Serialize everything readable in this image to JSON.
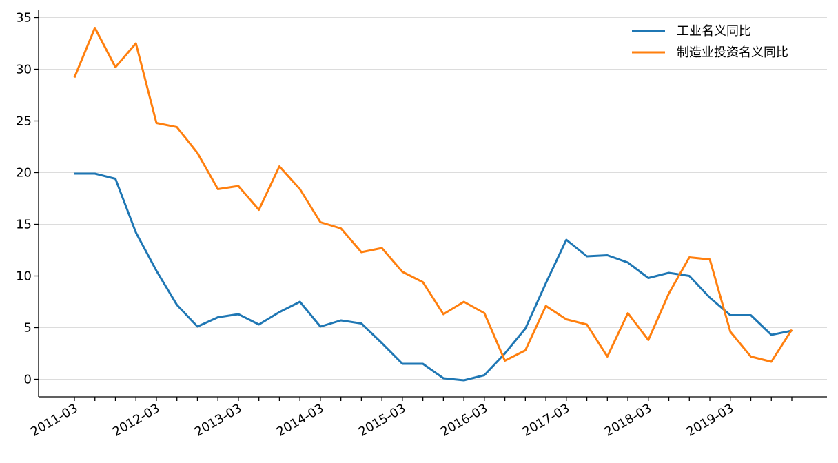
{
  "chart_data": {
    "type": "line",
    "title": "",
    "xlabel": "",
    "ylabel": "",
    "x": [
      "2011-03",
      "2011-06",
      "2011-09",
      "2011-12",
      "2012-03",
      "2012-06",
      "2012-09",
      "2012-12",
      "2013-03",
      "2013-06",
      "2013-09",
      "2013-12",
      "2014-03",
      "2014-06",
      "2014-09",
      "2014-12",
      "2015-03",
      "2015-06",
      "2015-09",
      "2015-12",
      "2016-03",
      "2016-06",
      "2016-09",
      "2016-12",
      "2017-03",
      "2017-06",
      "2017-09",
      "2017-12",
      "2018-03",
      "2018-06",
      "2018-09",
      "2018-12",
      "2019-03",
      "2019-06",
      "2019-09",
      "2019-12"
    ],
    "x_tick_labels": [
      "2011-03",
      "2012-03",
      "2013-03",
      "2014-03",
      "2015-03",
      "2016-03",
      "2017-03",
      "2018-03",
      "2019-03"
    ],
    "ylim": [
      -1.7,
      35.7
    ],
    "y_ticks": [
      0,
      5,
      10,
      15,
      20,
      25,
      30,
      35
    ],
    "grid": "horizontal",
    "legend_position": "top-right",
    "series": [
      {
        "name": "工业名义同比",
        "color": "#1f77b4",
        "values": [
          19.9,
          19.9,
          19.4,
          14.2,
          10.5,
          7.2,
          5.1,
          6.0,
          6.3,
          5.3,
          6.5,
          7.5,
          5.1,
          5.7,
          5.4,
          3.5,
          1.5,
          1.5,
          0.1,
          -0.1,
          0.4,
          2.5,
          4.9,
          9.3,
          13.5,
          11.9,
          12.0,
          11.3,
          9.8,
          10.3,
          10.0,
          7.9,
          6.2,
          6.2,
          4.3,
          4.7
        ]
      },
      {
        "name": "制造业投资名义同比",
        "color": "#ff7f0e",
        "values": [
          29.2,
          34.0,
          30.2,
          32.5,
          24.8,
          24.4,
          21.9,
          18.4,
          18.7,
          16.4,
          20.6,
          18.4,
          15.2,
          14.6,
          12.3,
          12.7,
          10.4,
          9.4,
          6.3,
          7.5,
          6.4,
          1.8,
          2.8,
          7.1,
          5.8,
          5.3,
          2.2,
          6.4,
          3.8,
          8.3,
          11.8,
          11.6,
          4.6,
          2.2,
          1.7,
          4.8
        ]
      }
    ]
  }
}
